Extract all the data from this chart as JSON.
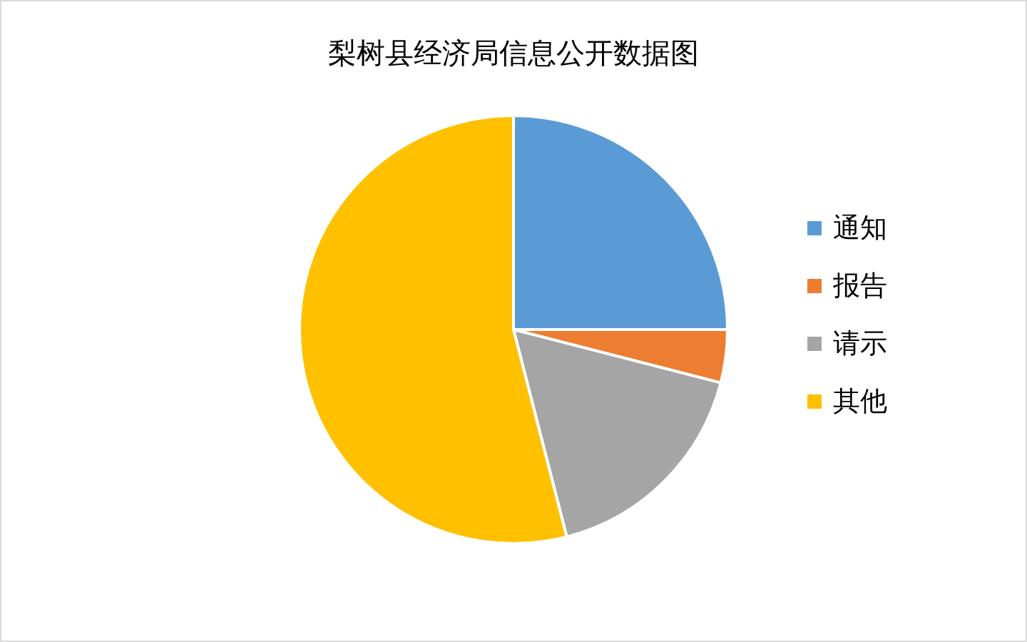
{
  "chart_data": {
    "type": "pie",
    "title": "梨树县经济局信息公开数据图",
    "categories": [
      "通知",
      "报告",
      "请示",
      "其他"
    ],
    "values": [
      25,
      4,
      17,
      54
    ],
    "colors": [
      "#5b9bd5",
      "#ed7d31",
      "#a5a5a5",
      "#ffc000"
    ],
    "legend": "right"
  }
}
